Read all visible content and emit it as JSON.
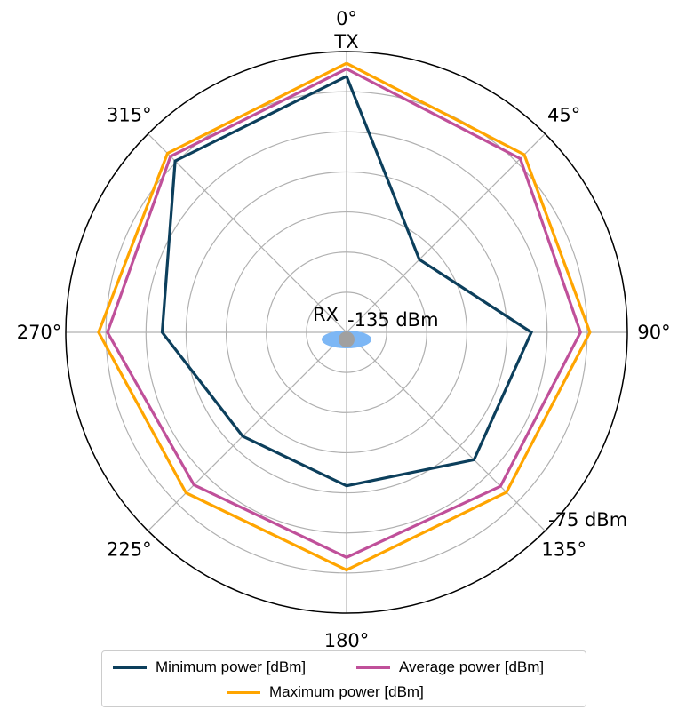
{
  "chart_data": {
    "type": "radar",
    "theta_unit": "degrees",
    "theta_zero": "top",
    "theta_direction": "clockwise",
    "r_range_dbm": [
      -135,
      -75
    ],
    "r_ticks_count": 7,
    "grid": true,
    "angle_ticks": [
      {
        "deg": 0,
        "label": "0°"
      },
      {
        "deg": 45,
        "label": "45°"
      },
      {
        "deg": 90,
        "label": "90°"
      },
      {
        "deg": 135,
        "label": "135°"
      },
      {
        "deg": 180,
        "label": "180°"
      },
      {
        "deg": 225,
        "label": "225°"
      },
      {
        "deg": 270,
        "label": "270°"
      },
      {
        "deg": 315,
        "label": "315°"
      }
    ],
    "radial_labels": {
      "inner": "-135 dBm",
      "outer": "-75 dBm"
    },
    "annotations": {
      "tx": "TX",
      "rx": "RX"
    },
    "angles": [
      0,
      45,
      90,
      135,
      180,
      225,
      270,
      315
    ],
    "series": [
      {
        "name": "Minimum power [dBm]",
        "color": "#0c3f5c",
        "values": [
          -80.3,
          -113.0,
          -95.5,
          -96.5,
          -102.2,
          -103.6,
          -95.6,
          -83.2
        ]
      },
      {
        "name": "Average power [dBm]",
        "color": "#c0509a",
        "values": [
          -78.7,
          -82.5,
          -85.0,
          -88.5,
          -86.9,
          -88.9,
          -83.9,
          -81.8
        ]
      },
      {
        "name": "Maximum power [dBm]",
        "color": "#ffa500",
        "values": [
          -77.5,
          -81.3,
          -83.0,
          -86.7,
          -84.2,
          -86.5,
          -82.0,
          -80.9
        ]
      }
    ],
    "legend_placement": "bottom-center"
  }
}
